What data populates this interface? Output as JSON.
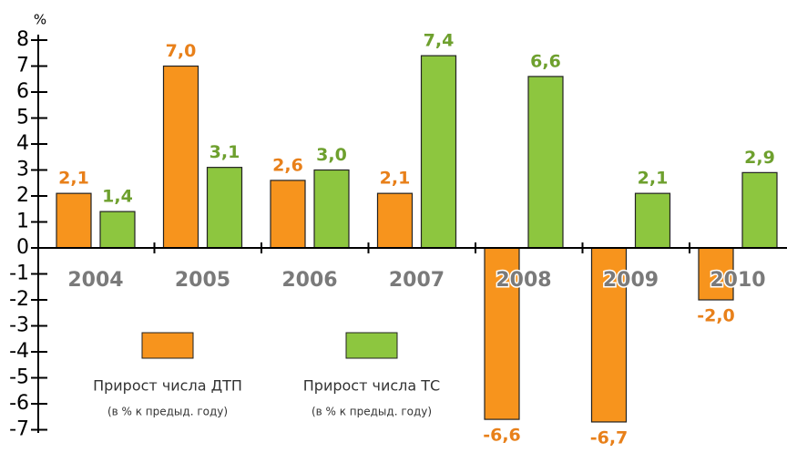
{
  "chart_data": {
    "type": "bar",
    "y_label": "%",
    "categories": [
      "2004",
      "2005",
      "2006",
      "2007",
      "2008",
      "2009",
      "2010"
    ],
    "series": [
      {
        "name": "Прирост числа ДТП",
        "subtitle": "(в % к предыд. году)",
        "color": "#f7941d",
        "label_color": "#e8801a",
        "values": [
          2.1,
          7.0,
          2.6,
          2.1,
          -6.6,
          -6.7,
          -2.0
        ],
        "value_labels": [
          "2,1",
          "7,0",
          "2,6",
          "2,1",
          "-6,6",
          "-6,7",
          "-2,0"
        ]
      },
      {
        "name": "Прирост числа ТС",
        "subtitle": "(в % к предыд. году)",
        "color": "#8dc63f",
        "label_color": "#6ea02e",
        "values": [
          1.4,
          3.1,
          3.0,
          7.4,
          6.6,
          2.1,
          2.9
        ],
        "value_labels": [
          "1,4",
          "3,1",
          "3,0",
          "7,4",
          "6,6",
          "2,1",
          "2,9"
        ]
      }
    ],
    "ylim": [
      -7,
      8
    ],
    "yticks": [
      -7,
      -6,
      -5,
      -4,
      -3,
      -2,
      -1,
      0,
      1,
      2,
      3,
      4,
      5,
      6,
      7,
      8
    ]
  }
}
